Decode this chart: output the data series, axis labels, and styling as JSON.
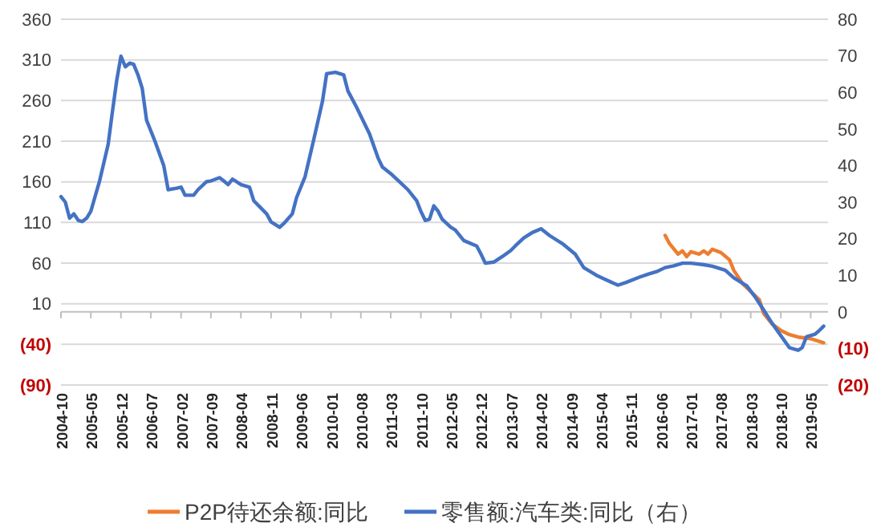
{
  "chart_data": {
    "type": "line",
    "xlim": [
      "2004-10",
      "2019-09"
    ],
    "xticks": [
      "2004-10",
      "2005-05",
      "2005-12",
      "2006-07",
      "2007-02",
      "2007-09",
      "2008-04",
      "2008-11",
      "2009-06",
      "2010-01",
      "2010-08",
      "2011-03",
      "2011-10",
      "2012-05",
      "2012-12",
      "2013-07",
      "2014-02",
      "2014-09",
      "2015-04",
      "2015-11",
      "2016-06",
      "2017-01",
      "2017-08",
      "2018-03",
      "2018-10",
      "2019-05"
    ],
    "ylim": [
      -90,
      360
    ],
    "yticks": [
      {
        "value": -90,
        "label": "(90)"
      },
      {
        "value": -40,
        "label": "(40)"
      },
      10,
      60,
      110,
      160,
      210,
      260,
      310,
      360
    ],
    "y2lim": [
      -20,
      80
    ],
    "y2ticks": [
      {
        "value": -20,
        "label": "(20)"
      },
      {
        "value": -10,
        "label": "(10)"
      },
      0,
      10,
      20,
      30,
      40,
      50,
      60,
      70,
      80
    ],
    "grid": "y",
    "legend": "bottom",
    "line_style": "solid",
    "marker": "none",
    "series": [
      {
        "name": "P2P待还余额:同比",
        "color": "#ed7d31",
        "x": [
          "2016-07",
          "2016-08",
          "2016-10",
          "2016-11",
          "2016-12",
          "2017-01",
          "2017-03",
          "2017-04",
          "2017-05",
          "2017-06",
          "2017-08",
          "2017-10",
          "2017-11",
          "2018-01",
          "2018-03",
          "2018-05",
          "2018-06",
          "2018-08",
          "2018-10",
          "2018-12",
          "2019-02",
          "2019-05",
          "2019-08"
        ],
        "values": [
          94,
          84,
          71,
          75,
          68,
          74,
          71,
          75,
          71,
          77,
          73,
          64,
          51,
          35,
          25,
          15,
          -2,
          -15,
          -23,
          -28,
          -31,
          -33,
          -38
        ]
      },
      {
        "name": "零售额:汽车类:同比（右）",
        "color": "#4472c4",
        "axis": "y2",
        "x": [
          "2004-10",
          "2004-11",
          "2004-12",
          "2005-01",
          "2005-02",
          "2005-03",
          "2005-04",
          "2005-05",
          "2005-07",
          "2005-09",
          "2005-10",
          "2005-11",
          "2005-12",
          "2006-01",
          "2006-02",
          "2006-03",
          "2006-04",
          "2006-05",
          "2006-06",
          "2006-08",
          "2006-10",
          "2006-11",
          "2007-01",
          "2007-02",
          "2007-03",
          "2007-05",
          "2007-06",
          "2007-08",
          "2007-09",
          "2007-11",
          "2007-12",
          "2008-01",
          "2008-02",
          "2008-04",
          "2008-06",
          "2008-07",
          "2008-10",
          "2008-11",
          "2009-01",
          "2009-02",
          "2009-04",
          "2009-05",
          "2009-07",
          "2009-09",
          "2009-11",
          "2009-12",
          "2010-02",
          "2010-04",
          "2010-05",
          "2010-07",
          "2010-10",
          "2010-12",
          "2011-01",
          "2011-03",
          "2011-05",
          "2011-07",
          "2011-09",
          "2011-10",
          "2011-11",
          "2011-12",
          "2012-01",
          "2012-02",
          "2012-03",
          "2012-05",
          "2012-06",
          "2012-08",
          "2012-11",
          "2012-12",
          "2013-01",
          "2013-03",
          "2013-05",
          "2013-07",
          "2013-08",
          "2013-10",
          "2013-12",
          "2014-02",
          "2014-04",
          "2014-07",
          "2014-10",
          "2014-12",
          "2015-03",
          "2015-05",
          "2015-08",
          "2015-10",
          "2016-01",
          "2016-03",
          "2016-05",
          "2016-07",
          "2016-09",
          "2016-11",
          "2017-01",
          "2017-04",
          "2017-06",
          "2017-09",
          "2017-11",
          "2018-02",
          "2018-04",
          "2018-06",
          "2018-08",
          "2018-10",
          "2018-12",
          "2019-02",
          "2019-03",
          "2019-04",
          "2019-06",
          "2019-07",
          "2019-08"
        ],
        "values": [
          31.5,
          30,
          25.6,
          26.8,
          25,
          24.7,
          25.6,
          27.5,
          35.6,
          45.8,
          54.6,
          63.3,
          69.9,
          67,
          68,
          67.7,
          64.8,
          61.1,
          52.4,
          46.5,
          40,
          33.4,
          33.8,
          34.1,
          31.9,
          31.9,
          33.4,
          35.6,
          35.8,
          36.7,
          35.8,
          34.8,
          36.3,
          34.8,
          34.1,
          30.4,
          26.8,
          24.6,
          23.1,
          24.2,
          26.8,
          31.2,
          37,
          47.2,
          57.5,
          65.1,
          65.5,
          64.8,
          60.4,
          56,
          48.7,
          42.1,
          39.6,
          37.8,
          35.6,
          33.4,
          30.4,
          27.5,
          25,
          25.3,
          29,
          27.5,
          25.3,
          23.1,
          22.4,
          19.5,
          18,
          15.8,
          13.3,
          13.6,
          15.1,
          16.8,
          18,
          20.2,
          21.7,
          22.7,
          20.9,
          18.7,
          15.8,
          12.1,
          10,
          8.9,
          7.3,
          8.1,
          9.5,
          10.3,
          11,
          12.1,
          12.6,
          13.3,
          13.3,
          12.9,
          12.5,
          11.4,
          9.3,
          7.1,
          4.1,
          0.5,
          -3.2,
          -6.5,
          -9.8,
          -10.5,
          -9.8,
          -6.8,
          -6.1,
          -5.1,
          -3.9
        ]
      }
    ]
  }
}
